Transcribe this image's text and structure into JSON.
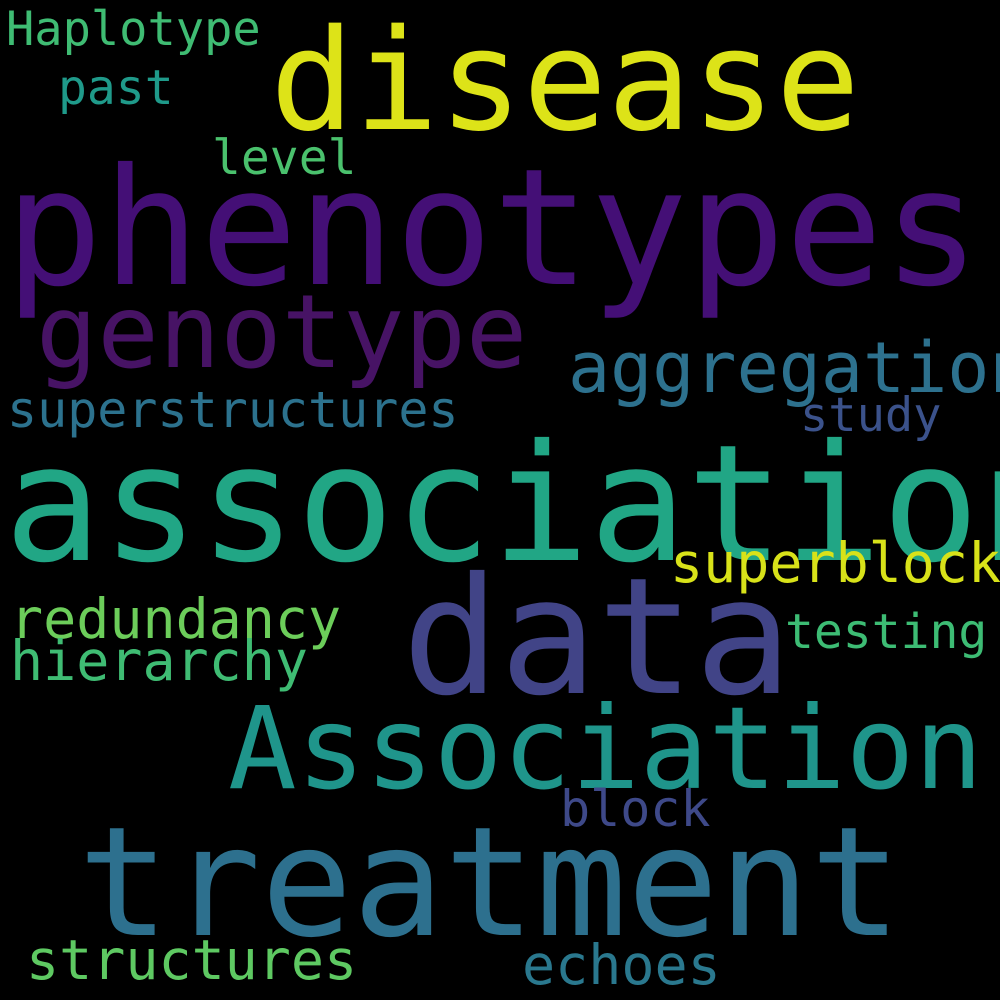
{
  "background": "#000000",
  "words": [
    {
      "text": "Haplotype",
      "color": "#3fbc73"
    },
    {
      "text": "disease",
      "color": "#dde318"
    },
    {
      "text": "past",
      "color": "#1f9a8a"
    },
    {
      "text": "level",
      "color": "#4ac16d"
    },
    {
      "text": "phenotypes",
      "color": "#440f76"
    },
    {
      "text": "genotype",
      "color": "#471365"
    },
    {
      "text": "aggregation",
      "color": "#2d718e"
    },
    {
      "text": "superstructures",
      "color": "#2c728e"
    },
    {
      "text": "study",
      "color": "#3b528b"
    },
    {
      "text": "association",
      "color": "#21a685"
    },
    {
      "text": "superblock",
      "color": "#d8e219"
    },
    {
      "text": "data",
      "color": "#414487"
    },
    {
      "text": "redundancy",
      "color": "#6ccd5a"
    },
    {
      "text": "testing",
      "color": "#3dbc74"
    },
    {
      "text": "hierarchy",
      "color": "#3fbc73"
    },
    {
      "text": "Association",
      "color": "#1f958b"
    },
    {
      "text": "block",
      "color": "#3e4989"
    },
    {
      "text": "treatment",
      "color": "#2d708e"
    },
    {
      "text": "structures",
      "color": "#5ec962"
    },
    {
      "text": "echoes",
      "color": "#2a788e"
    }
  ]
}
